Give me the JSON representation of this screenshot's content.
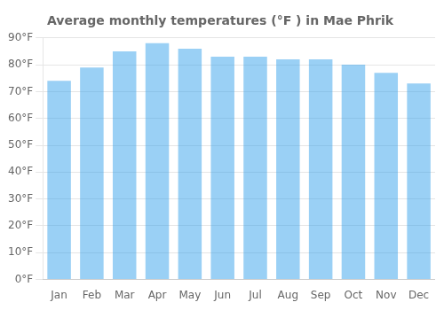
{
  "chart_data": {
    "type": "bar",
    "title": "Average monthly temperatures (°F ) in Mae Phrik",
    "categories": [
      "Jan",
      "Feb",
      "Mar",
      "Apr",
      "May",
      "Jun",
      "Jul",
      "Aug",
      "Sep",
      "Oct",
      "Nov",
      "Dec"
    ],
    "values": [
      74,
      79,
      85,
      88,
      86,
      83,
      83,
      82,
      82,
      80,
      77,
      73
    ],
    "ylim": [
      0,
      90
    ],
    "yticks": [
      {
        "value": 0,
        "label": "0°F"
      },
      {
        "value": 10,
        "label": "10°F"
      },
      {
        "value": 20,
        "label": "20°F"
      },
      {
        "value": 30,
        "label": "30°F"
      },
      {
        "value": 40,
        "label": "40°F"
      },
      {
        "value": 50,
        "label": "50°F"
      },
      {
        "value": 60,
        "label": "60°F"
      },
      {
        "value": 70,
        "label": "70°F"
      },
      {
        "value": 80,
        "label": "80°F"
      },
      {
        "value": 90,
        "label": "90°F"
      }
    ],
    "grid": true
  }
}
